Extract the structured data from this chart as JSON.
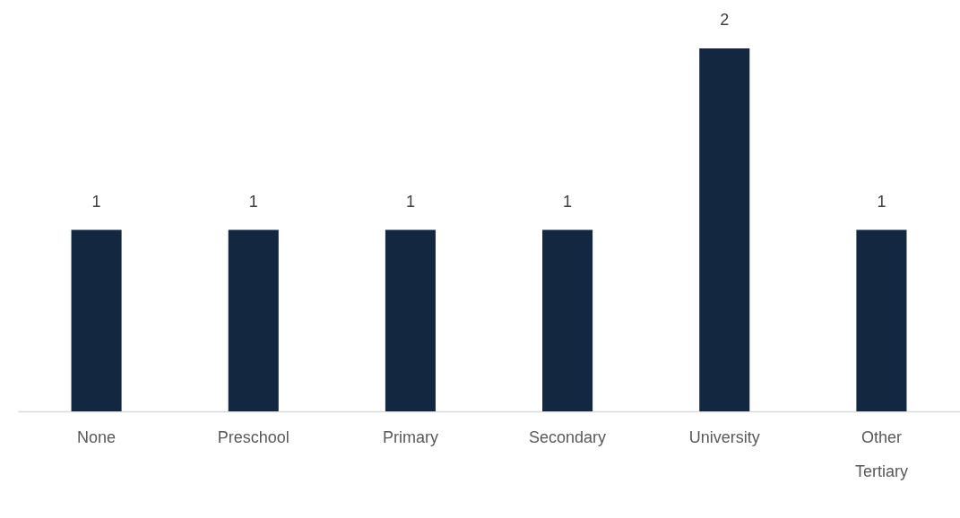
{
  "chart_data": {
    "type": "bar",
    "categories": [
      "None",
      "Preschool",
      "Primary",
      "Secondary",
      "University",
      "Other Tertiary"
    ],
    "values": [
      1,
      1,
      1,
      1,
      2,
      1
    ],
    "color": "#132741",
    "data_labels": true,
    "tick_labels": "x"
  }
}
